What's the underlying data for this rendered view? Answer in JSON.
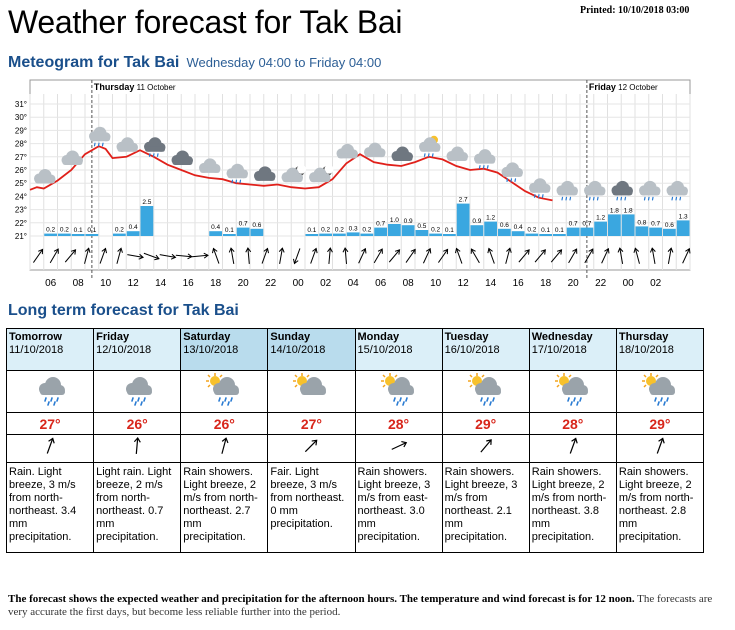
{
  "printed": "Printed: 10/10/2018 03:00",
  "title": "Weather forecast for Tak Bai",
  "meteogram": {
    "heading": "Meteogram for Tak Bai",
    "subheading": "Wednesday 04:00 to Friday 04:00",
    "day_labels": [
      {
        "day": "Thursday",
        "date": "11 October"
      },
      {
        "day": "Friday",
        "date": "12 October"
      }
    ]
  },
  "chart_data": {
    "type": "line",
    "hours": [
      "06",
      "08",
      "10",
      "12",
      "14",
      "16",
      "18",
      "20",
      "22",
      "00",
      "02",
      "04",
      "06",
      "08",
      "10",
      "12",
      "14",
      "16",
      "18",
      "20",
      "22",
      "00",
      "02"
    ],
    "y_ticks": [
      "31°",
      "30°",
      "29°",
      "28°",
      "27°",
      "26°",
      "25°",
      "24°",
      "23°",
      "22°",
      "21°"
    ],
    "ylim": [
      21,
      31
    ],
    "temperature_series": [
      {
        "x": 0,
        "y": 24.5
      },
      {
        "x": 1,
        "y": 24.7
      },
      {
        "x": 2,
        "y": 24.6
      },
      {
        "x": 4,
        "y": 25.2
      },
      {
        "x": 6,
        "y": 26.0
      },
      {
        "x": 8,
        "y": 27.2
      },
      {
        "x": 10,
        "y": 27.8
      },
      {
        "x": 11,
        "y": 27.6
      },
      {
        "x": 12,
        "y": 26.9
      },
      {
        "x": 14,
        "y": 27.0
      },
      {
        "x": 16,
        "y": 27.5
      },
      {
        "x": 18,
        "y": 27.0
      },
      {
        "x": 20,
        "y": 26.4
      },
      {
        "x": 22,
        "y": 26.0
      },
      {
        "x": 24,
        "y": 25.6
      },
      {
        "x": 26,
        "y": 25.4
      },
      {
        "x": 28,
        "y": 25.3
      },
      {
        "x": 30,
        "y": 25.0
      },
      {
        "x": 32,
        "y": 24.9
      },
      {
        "x": 34,
        "y": 24.8
      },
      {
        "x": 36,
        "y": 24.9
      },
      {
        "x": 38,
        "y": 24.7
      },
      {
        "x": 40,
        "y": 24.6
      },
      {
        "x": 42,
        "y": 24.7
      },
      {
        "x": 44,
        "y": 25.3
      },
      {
        "x": 46,
        "y": 26.5
      },
      {
        "x": 48,
        "y": 27.2
      },
      {
        "x": 50,
        "y": 26.6
      },
      {
        "x": 52,
        "y": 26.4
      },
      {
        "x": 54,
        "y": 26.3
      },
      {
        "x": 56,
        "y": 26.6
      },
      {
        "x": 58,
        "y": 27.0
      },
      {
        "x": 60,
        "y": 26.8
      },
      {
        "x": 62,
        "y": 26.3
      },
      {
        "x": 64,
        "y": 26.0
      },
      {
        "x": 66,
        "y": 26.1
      },
      {
        "x": 68,
        "y": 25.8
      },
      {
        "x": 70,
        "y": 25.1
      },
      {
        "x": 72,
        "y": 24.4
      },
      {
        "x": 74,
        "y": 23.9
      },
      {
        "x": 76,
        "y": 23.7
      }
    ],
    "precipitation": [
      {
        "x": 2,
        "v": 0.2,
        "label": "0.2"
      },
      {
        "x": 4,
        "v": 0.2,
        "label": "0.2"
      },
      {
        "x": 6,
        "v": 0.1,
        "label": "0.1"
      },
      {
        "x": 8,
        "v": 0.1,
        "label": "0.1"
      },
      {
        "x": 12,
        "v": 0.2,
        "label": "0.2"
      },
      {
        "x": 14,
        "v": 0.4,
        "label": "0.4"
      },
      {
        "x": 16,
        "v": 2.5,
        "label": "2.5"
      },
      {
        "x": 26,
        "v": 0.4,
        "label": "0.4"
      },
      {
        "x": 28,
        "v": 0.1,
        "label": "0.1"
      },
      {
        "x": 30,
        "v": 0.7,
        "label": "0.7"
      },
      {
        "x": 32,
        "v": 0.6,
        "label": "0.6"
      },
      {
        "x": 40,
        "v": 0.1,
        "label": "0.1"
      },
      {
        "x": 42,
        "v": 0.2,
        "label": "0.2"
      },
      {
        "x": 44,
        "v": 0.2,
        "label": "0.2"
      },
      {
        "x": 46,
        "v": 0.3,
        "label": "0.3"
      },
      {
        "x": 48,
        "v": 0.2,
        "label": "0.2"
      },
      {
        "x": 50,
        "v": 0.7,
        "label": "0.7"
      },
      {
        "x": 52,
        "v": 1.0,
        "label": "1.0"
      },
      {
        "x": 54,
        "v": 0.9,
        "label": "0.9"
      },
      {
        "x": 56,
        "v": 0.5,
        "label": "0.5"
      },
      {
        "x": 58,
        "v": 0.2,
        "label": "0.2"
      },
      {
        "x": 60,
        "v": 0.1,
        "label": "0.1"
      },
      {
        "x": 62,
        "v": 2.7,
        "label": "2.7"
      },
      {
        "x": 64,
        "v": 0.9,
        "label": "0.9"
      },
      {
        "x": 66,
        "v": 1.2,
        "label": "1.2"
      },
      {
        "x": 68,
        "v": 0.6,
        "label": "0.6"
      },
      {
        "x": 70,
        "v": 0.4,
        "label": "0.4"
      },
      {
        "x": 72,
        "v": 0.2,
        "label": "0.2"
      },
      {
        "x": 74,
        "v": 0.1,
        "label": "0.1"
      },
      {
        "x": 76,
        "v": 0.1,
        "label": "0.1"
      },
      {
        "x": 78,
        "v": 0.7,
        "label": "0.7"
      },
      {
        "x": 80,
        "v": 0.7,
        "label": "0.7"
      },
      {
        "x": 82,
        "v": 1.2,
        "label": "1.2"
      },
      {
        "x": 84,
        "v": 1.8,
        "label": "1.8"
      },
      {
        "x": 86,
        "v": 1.8,
        "label": "1.8"
      },
      {
        "x": 88,
        "v": 0.8,
        "label": "0.8"
      },
      {
        "x": 90,
        "v": 0.7,
        "label": "0.7"
      },
      {
        "x": 92,
        "v": 0.6,
        "label": "0.6"
      },
      {
        "x": 94,
        "v": 1.3,
        "label": "1.3"
      }
    ],
    "wind_arrows_deg": [
      35,
      30,
      40,
      15,
      20,
      15,
      100,
      110,
      100,
      95,
      85,
      340,
      350,
      355,
      20,
      10,
      200,
      20,
      5,
      355,
      25,
      30,
      40,
      35,
      25,
      35,
      340,
      330,
      340,
      15,
      40,
      40,
      40,
      30,
      30,
      25,
      350,
      345,
      350,
      10,
      25
    ],
    "weather_icons": [
      "cloudy",
      "cloudy",
      "cloudy-rain",
      "cloudy",
      "cloudy-dark-rain",
      "cloudy-dark",
      "cloudy",
      "cloudy-rain",
      "cloudy-dark",
      "moon-cloud",
      "moon-cloud",
      "cloudy",
      "cloudy",
      "cloudy-dark",
      "sun-cloud-rain",
      "cloudy",
      "cloudy-rain",
      "cloudy-rain",
      "cloudy-rain",
      "cloudy-rain",
      "cloudy-rain",
      "cloudy-dark-rain",
      "cloudy-rain",
      "cloudy-rain"
    ]
  },
  "long_term": {
    "heading": "Long term forecast for Tak Bai",
    "days": [
      {
        "name": "Tomorrow",
        "date": "11/10/2018",
        "icon": "cloud-rain-icon",
        "temp": "27°",
        "wind_deg": 20,
        "text": "Rain. Light breeze, 3 m/s from north-northeast. 3.4 mm precipitation.",
        "weekend": false
      },
      {
        "name": "Friday",
        "date": "12/10/2018",
        "icon": "cloud-rain-icon",
        "temp": "26°",
        "wind_deg": 5,
        "text": "Light rain. Light breeze, 2 m/s from north-northeast. 0.7 mm precipitation.",
        "weekend": false
      },
      {
        "name": "Saturday",
        "date": "13/10/2018",
        "icon": "sun-cloud-rain-icon",
        "temp": "26°",
        "wind_deg": 15,
        "text": "Rain showers. Light breeze, 2 m/s from north-northeast. 2.7 mm precipitation.",
        "weekend": true
      },
      {
        "name": "Sunday",
        "date": "14/10/2018",
        "icon": "sun-cloud-icon",
        "temp": "27°",
        "wind_deg": 45,
        "text": "Fair. Light breeze, 3 m/s from northeast. 0 mm precipitation.",
        "weekend": true
      },
      {
        "name": "Monday",
        "date": "15/10/2018",
        "icon": "sun-cloud-rain-icon",
        "temp": "28°",
        "wind_deg": 65,
        "text": "Rain showers. Light breeze, 3 m/s from east-northeast. 3.0 mm precipitation.",
        "weekend": false
      },
      {
        "name": "Tuesday",
        "date": "16/10/2018",
        "icon": "sun-cloud-rain-icon",
        "temp": "29°",
        "wind_deg": 40,
        "text": "Rain showers. Light breeze, 3 m/s from northeast. 2.1 mm precipitation.",
        "weekend": false
      },
      {
        "name": "Wednesday",
        "date": "17/10/2018",
        "icon": "sun-cloud-rain-icon",
        "temp": "28°",
        "wind_deg": 20,
        "text": "Rain showers. Light breeze, 2 m/s from north-northeast. 3.8 mm precipitation.",
        "weekend": false
      },
      {
        "name": "Thursday",
        "date": "18/10/2018",
        "icon": "sun-cloud-rain-icon",
        "temp": "29°",
        "wind_deg": 20,
        "text": "Rain showers. Light breeze, 2 m/s from north-northeast. 2.8 mm precipitation.",
        "weekend": false
      }
    ]
  },
  "footnote": {
    "bold": "The forecast shows the expected weather and precipitation for the afternoon hours. The temperature and wind forecast is for 12 noon.",
    "rest": "The forecasts are very accurate the first days, but become less reliable further into the period."
  },
  "colors": {
    "heading_blue": "#1a4f8b",
    "temp_line": "#e0201a",
    "precip_bar": "#3aa7e0",
    "weekday_bg": "#dbeff8",
    "weekend_bg": "#b9dced"
  }
}
